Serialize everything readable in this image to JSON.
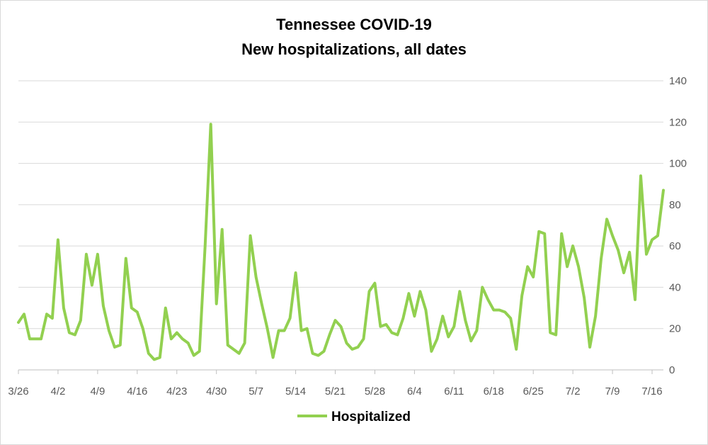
{
  "chart_data": {
    "type": "line",
    "title": "Tennessee COVID-19",
    "subtitle": "New hospitalizations, all dates",
    "x_start": "3/26",
    "x_tick_labels": [
      "3/26",
      "4/2",
      "4/9",
      "4/16",
      "4/23",
      "4/30",
      "5/7",
      "5/14",
      "5/21",
      "5/28",
      "6/4",
      "6/11",
      "6/18",
      "6/25",
      "7/2",
      "7/9",
      "7/16"
    ],
    "ylim": [
      0,
      140
    ],
    "y_ticks": [
      0,
      20,
      40,
      60,
      80,
      100,
      120,
      140
    ],
    "y_axis_side": "right",
    "grid": true,
    "legend_position": "bottom",
    "series": [
      {
        "name": "Hospitalized",
        "color": "#92d050",
        "values": [
          23,
          27,
          15,
          15,
          15,
          27,
          25,
          63,
          30,
          18,
          17,
          24,
          56,
          41,
          56,
          31,
          19,
          11,
          12,
          54,
          30,
          28,
          20,
          8,
          5,
          6,
          30,
          15,
          18,
          15,
          13,
          7,
          9,
          60,
          119,
          32,
          68,
          12,
          10,
          8,
          13,
          65,
          45,
          32,
          20,
          6,
          19,
          19,
          25,
          47,
          19,
          20,
          8,
          7,
          9,
          17,
          24,
          21,
          13,
          10,
          11,
          15,
          38,
          42,
          21,
          22,
          18,
          17,
          25,
          37,
          26,
          38,
          29,
          9,
          15,
          26,
          16,
          21,
          38,
          24,
          14,
          19,
          40,
          34,
          29,
          29,
          28,
          25,
          10,
          36,
          50,
          45,
          67,
          66,
          18,
          17,
          66,
          50,
          60,
          50,
          35,
          11,
          26,
          54,
          73,
          65,
          58,
          47,
          57,
          34,
          94,
          56,
          63,
          65,
          87
        ]
      }
    ]
  }
}
